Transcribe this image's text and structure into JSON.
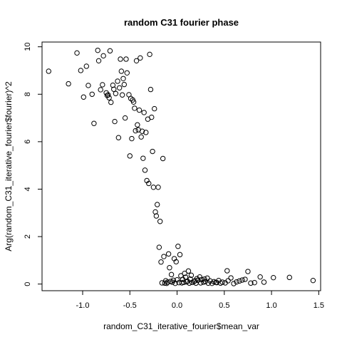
{
  "chart_data": {
    "type": "scatter",
    "title": "random C31 fourier phase",
    "xlabel": "random_C31_iterative_fourier$mean_var",
    "ylabel": "Arg(random_C31_iterative_fourier$fourier)^2",
    "xlim": [
      -1.43,
      1.52
    ],
    "ylim": [
      -0.28,
      10.2
    ],
    "x_ticks": [
      -1.0,
      -0.5,
      0.0,
      0.5,
      1.0,
      1.5
    ],
    "x_tick_labels": [
      "-1.0",
      "-0.5",
      "0.0",
      "0.5",
      "1.0",
      "1.5"
    ],
    "y_ticks": [
      0,
      2,
      4,
      6,
      8,
      10
    ],
    "y_tick_labels": [
      "0",
      "2",
      "4",
      "6",
      "8",
      "10"
    ],
    "grid": false,
    "legend": "none",
    "marker": "open-circle",
    "colors": {
      "points": "#000000",
      "axes": "#000000",
      "background": "#ffffff"
    },
    "points": [
      [
        -1.36,
        8.97
      ],
      [
        -1.15,
        8.44
      ],
      [
        -1.06,
        9.74
      ],
      [
        -1.02,
        9.0
      ],
      [
        -0.99,
        7.88
      ],
      [
        -0.96,
        9.18
      ],
      [
        -0.94,
        8.37
      ],
      [
        -0.9,
        8.0
      ],
      [
        -0.88,
        6.77
      ],
      [
        -0.84,
        9.85
      ],
      [
        -0.83,
        9.41
      ],
      [
        -0.81,
        8.19
      ],
      [
        -0.79,
        8.4
      ],
      [
        -0.78,
        9.62
      ],
      [
        -0.75,
        8.06
      ],
      [
        -0.74,
        7.95
      ],
      [
        -0.73,
        7.97
      ],
      [
        -0.72,
        7.85
      ],
      [
        -0.71,
        9.83
      ],
      [
        -0.7,
        7.66
      ],
      [
        -0.68,
        8.38
      ],
      [
        -0.67,
        8.21
      ],
      [
        -0.66,
        6.85
      ],
      [
        -0.65,
        8.03
      ],
      [
        -0.63,
        8.55
      ],
      [
        -0.62,
        6.17
      ],
      [
        -0.61,
        8.27
      ],
      [
        -0.6,
        9.48
      ],
      [
        -0.59,
        8.97
      ],
      [
        -0.58,
        7.97
      ],
      [
        -0.57,
        8.66
      ],
      [
        -0.56,
        8.41
      ],
      [
        -0.55,
        7.0
      ],
      [
        -0.54,
        9.48
      ],
      [
        -0.53,
        8.9
      ],
      [
        -0.51,
        7.98
      ],
      [
        -0.5,
        5.4
      ],
      [
        -0.49,
        7.82
      ],
      [
        -0.48,
        6.13
      ],
      [
        -0.47,
        7.76
      ],
      [
        -0.46,
        7.67
      ],
      [
        -0.45,
        7.41
      ],
      [
        -0.44,
        6.46
      ],
      [
        -0.43,
        9.41
      ],
      [
        -0.42,
        6.71
      ],
      [
        -0.41,
        6.5
      ],
      [
        -0.4,
        7.33
      ],
      [
        -0.39,
        9.53
      ],
      [
        -0.38,
        6.2
      ],
      [
        -0.37,
        6.44
      ],
      [
        -0.36,
        5.3
      ],
      [
        -0.35,
        7.23
      ],
      [
        -0.34,
        4.8
      ],
      [
        -0.33,
        6.39
      ],
      [
        -0.32,
        4.36
      ],
      [
        -0.31,
        6.95
      ],
      [
        -0.3,
        4.24
      ],
      [
        -0.29,
        9.68
      ],
      [
        -0.28,
        8.2
      ],
      [
        -0.27,
        7.03
      ],
      [
        -0.26,
        5.59
      ],
      [
        -0.25,
        4.08
      ],
      [
        -0.24,
        7.39
      ],
      [
        -0.23,
        3.04
      ],
      [
        -0.22,
        2.87
      ],
      [
        -0.21,
        3.35
      ],
      [
        -0.2,
        4.08
      ],
      [
        -0.19,
        1.55
      ],
      [
        -0.18,
        2.64
      ],
      [
        -0.17,
        0.93
      ],
      [
        -0.16,
        0.05
      ],
      [
        -0.15,
        5.29
      ],
      [
        -0.14,
        1.16
      ],
      [
        -0.13,
        0.04
      ],
      [
        -0.12,
        0.14
      ],
      [
        -0.11,
        0.03
      ],
      [
        -0.1,
        0.08
      ],
      [
        -0.09,
        1.27
      ],
      [
        -0.08,
        0.69
      ],
      [
        -0.07,
        0.11
      ],
      [
        -0.06,
        0.4
      ],
      [
        -0.05,
        0.08
      ],
      [
        -0.04,
        0.16
      ],
      [
        -0.03,
        1.07
      ],
      [
        -0.02,
        0.03
      ],
      [
        -0.01,
        0.94
      ],
      [
        0.0,
        0.18
      ],
      [
        0.01,
        1.59
      ],
      [
        0.02,
        0.06
      ],
      [
        0.03,
        1.24
      ],
      [
        0.04,
        0.35
      ],
      [
        0.05,
        0.05
      ],
      [
        0.06,
        0.2
      ],
      [
        0.07,
        0.07
      ],
      [
        0.08,
        0.45
      ],
      [
        0.09,
        0.29
      ],
      [
        0.1,
        0.09
      ],
      [
        0.11,
        0.12
      ],
      [
        0.12,
        0.55
      ],
      [
        0.13,
        0.04
      ],
      [
        0.14,
        0.21
      ],
      [
        0.15,
        0.37
      ],
      [
        0.16,
        0.07
      ],
      [
        0.18,
        0.11
      ],
      [
        0.19,
        0.14
      ],
      [
        0.2,
        0.04
      ],
      [
        0.21,
        0.23
      ],
      [
        0.22,
        0.16
      ],
      [
        0.24,
        0.3
      ],
      [
        0.25,
        0.05
      ],
      [
        0.26,
        0.19
      ],
      [
        0.28,
        0.08
      ],
      [
        0.29,
        0.21
      ],
      [
        0.3,
        0.11
      ],
      [
        0.32,
        0.25
      ],
      [
        0.33,
        0.04
      ],
      [
        0.35,
        0.13
      ],
      [
        0.37,
        0.03
      ],
      [
        0.39,
        0.1
      ],
      [
        0.41,
        0.07
      ],
      [
        0.42,
        0.06
      ],
      [
        0.44,
        0.15
      ],
      [
        0.46,
        0.04
      ],
      [
        0.48,
        0.08
      ],
      [
        0.51,
        0.05
      ],
      [
        0.53,
        0.56
      ],
      [
        0.54,
        0.14
      ],
      [
        0.57,
        0.26
      ],
      [
        0.6,
        0.02
      ],
      [
        0.63,
        0.09
      ],
      [
        0.66,
        0.13
      ],
      [
        0.69,
        0.17
      ],
      [
        0.72,
        0.2
      ],
      [
        0.75,
        0.53
      ],
      [
        0.78,
        0.04
      ],
      [
        0.82,
        0.06
      ],
      [
        0.88,
        0.3
      ],
      [
        0.92,
        0.08
      ],
      [
        1.02,
        0.27
      ],
      [
        1.19,
        0.28
      ],
      [
        1.44,
        0.15
      ]
    ]
  }
}
